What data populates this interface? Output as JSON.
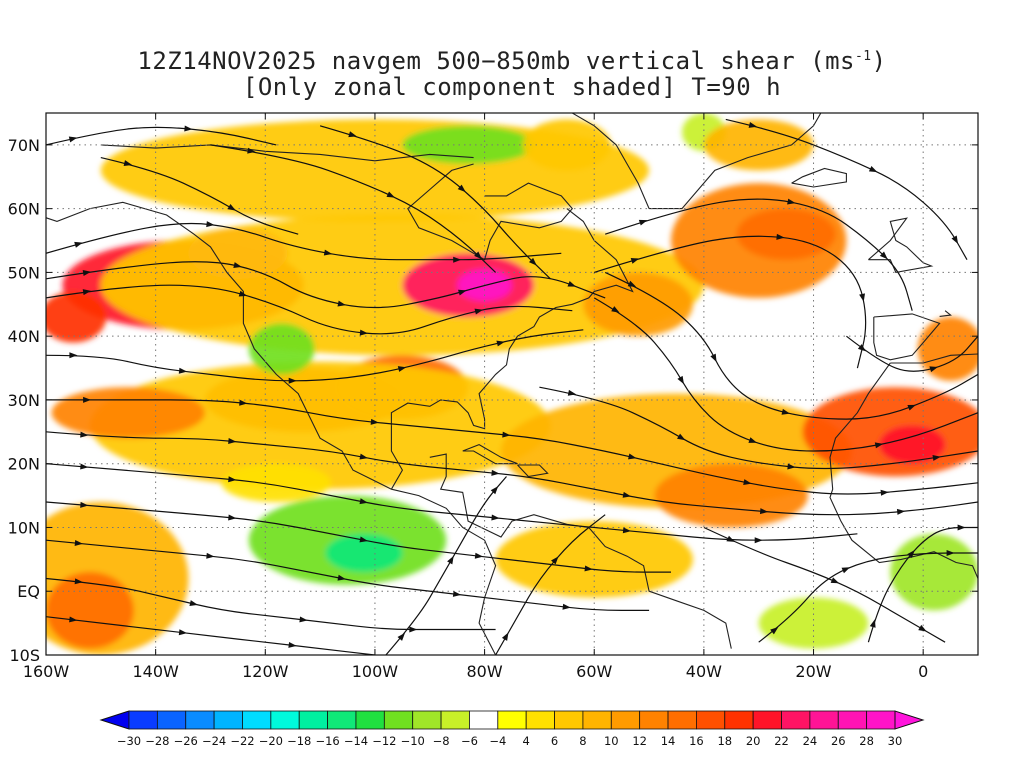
{
  "title": {
    "line1_prefix": "12Z14NOV2025 navgem 500−850mb vertical shear (ms",
    "line1_sup": "-1",
    "line1_suffix": ")",
    "line2": "[Only zonal component shaded] T=90 h"
  },
  "map": {
    "lon_range": [
      -160,
      10
    ],
    "lat_range": [
      -10,
      75
    ],
    "lon_ticks": [
      {
        "value": -160,
        "label": "160W"
      },
      {
        "value": -140,
        "label": "140W"
      },
      {
        "value": -120,
        "label": "120W"
      },
      {
        "value": -100,
        "label": "100W"
      },
      {
        "value": -80,
        "label": "80W"
      },
      {
        "value": -60,
        "label": "60W"
      },
      {
        "value": -40,
        "label": "40W"
      },
      {
        "value": -20,
        "label": "20W"
      },
      {
        "value": 0,
        "label": "0"
      }
    ],
    "lat_ticks": [
      {
        "value": 70,
        "label": "70N"
      },
      {
        "value": 60,
        "label": "60N"
      },
      {
        "value": 50,
        "label": "50N"
      },
      {
        "value": 40,
        "label": "40N"
      },
      {
        "value": 30,
        "label": "30N"
      },
      {
        "value": 20,
        "label": "20N"
      },
      {
        "value": 10,
        "label": "10N"
      },
      {
        "value": 0,
        "label": "EQ"
      },
      {
        "value": -10,
        "label": "10S"
      }
    ],
    "grid": "dotted"
  },
  "colorbar": {
    "labels": [
      "-30",
      "-28",
      "-26",
      "-24",
      "-22",
      "-20",
      "-18",
      "-16",
      "-14",
      "-12",
      "-10",
      "-8",
      "-6",
      "-4",
      "4",
      "6",
      "8",
      "10",
      "12",
      "14",
      "16",
      "18",
      "20",
      "22",
      "24",
      "26",
      "28",
      "30"
    ],
    "colors": [
      "#0000f0",
      "#0a3cff",
      "#0a64ff",
      "#0a8cff",
      "#00b4ff",
      "#00dcff",
      "#00fadc",
      "#00f0a0",
      "#10e878",
      "#20e040",
      "#70e020",
      "#a0e628",
      "#c8f028",
      "#ffffff",
      "#ffff00",
      "#ffe100",
      "#ffc800",
      "#ffb400",
      "#ff9b00",
      "#ff8200",
      "#ff6e00",
      "#ff5000",
      "#ff3200",
      "#ff1428",
      "#ff1464",
      "#ff1496",
      "#ff14b4",
      "#ff14c8",
      "#ff14dc"
    ]
  },
  "shear_blobs": [
    {
      "lon": -135,
      "lat": 48,
      "rlon": 22,
      "rlat": 7,
      "value": 22
    },
    {
      "lon": -125,
      "lat": 53,
      "rlon": 9,
      "rlat": 4,
      "value": 30
    },
    {
      "lon": -155,
      "lat": 43,
      "rlon": 6,
      "rlat": 4,
      "value": 20
    },
    {
      "lon": -95,
      "lat": 48,
      "rlon": 55,
      "rlat": 11,
      "value": 9
    },
    {
      "lon": -83,
      "lat": 48,
      "rlon": 12,
      "rlat": 5,
      "value": 24
    },
    {
      "lon": -80,
      "lat": 48,
      "rlon": 5,
      "rlat": 2.5,
      "value": 30
    },
    {
      "lon": -100,
      "lat": 66,
      "rlon": 50,
      "rlat": 8,
      "value": 8
    },
    {
      "lon": -83,
      "lat": 70,
      "rlon": 12,
      "rlat": 3,
      "value": -10
    },
    {
      "lon": -113,
      "lat": 30,
      "rlon": 18,
      "rlat": 5,
      "value": 18
    },
    {
      "lon": -95,
      "lat": 32,
      "rlon": 12,
      "rlat": 5,
      "value": 16
    },
    {
      "lon": -110,
      "lat": 26,
      "rlon": 42,
      "rlat": 10,
      "value": 9
    },
    {
      "lon": -145,
      "lat": 28,
      "rlon": 14,
      "rlat": 4,
      "value": 14
    },
    {
      "lon": -117,
      "lat": 38,
      "rlon": 6,
      "rlat": 4,
      "value": -10
    },
    {
      "lon": -52,
      "lat": 45,
      "rlon": 10,
      "rlat": 5,
      "value": 12
    },
    {
      "lon": -30,
      "lat": 55,
      "rlon": 16,
      "rlat": 9,
      "value": 14
    },
    {
      "lon": -25,
      "lat": 56,
      "rlon": 9,
      "rlat": 4,
      "value": 17
    },
    {
      "lon": -45,
      "lat": 22,
      "rlon": 32,
      "rlat": 9,
      "value": 10
    },
    {
      "lon": -35,
      "lat": 15,
      "rlon": 14,
      "rlat": 5,
      "value": 14
    },
    {
      "lon": -5,
      "lat": 25,
      "rlon": 17,
      "rlat": 7,
      "value": 18
    },
    {
      "lon": -2,
      "lat": 23,
      "rlon": 6,
      "rlat": 3,
      "value": 22
    },
    {
      "lon": 5,
      "lat": 38,
      "rlon": 6,
      "rlat": 5,
      "value": 14
    },
    {
      "lon": -60,
      "lat": 5,
      "rlon": 18,
      "rlat": 6,
      "value": 9
    },
    {
      "lon": -150,
      "lat": 2,
      "rlon": 16,
      "rlat": 12,
      "value": 10
    },
    {
      "lon": -152,
      "lat": -3,
      "rlon": 8,
      "rlat": 6,
      "value": 16
    },
    {
      "lon": -105,
      "lat": 8,
      "rlon": 18,
      "rlat": 7,
      "value": -10
    },
    {
      "lon": -102,
      "lat": 6,
      "rlon": 7,
      "rlat": 3,
      "value": -14
    },
    {
      "lon": -118,
      "lat": 17,
      "rlon": 10,
      "rlat": 3,
      "value": 6
    },
    {
      "lon": 2,
      "lat": 3,
      "rlon": 8,
      "rlat": 6,
      "value": -8
    },
    {
      "lon": -20,
      "lat": -5,
      "rlon": 10,
      "rlat": 4,
      "value": -6
    },
    {
      "lon": -40,
      "lat": 72,
      "rlon": 4,
      "rlat": 3,
      "value": -6
    },
    {
      "lon": -65,
      "lat": 70,
      "rlon": 8,
      "rlat": 4,
      "value": 8
    },
    {
      "lon": -30,
      "lat": 70,
      "rlon": 10,
      "rlat": 4,
      "value": 10
    }
  ],
  "streamlines": [
    [
      [
        -160,
        49
      ],
      [
        -145,
        51
      ],
      [
        -130,
        52
      ],
      [
        -120,
        50
      ],
      [
        -112,
        46
      ],
      [
        -100,
        44
      ],
      [
        -88,
        46
      ],
      [
        -80,
        48
      ],
      [
        -70,
        50
      ],
      [
        -58,
        46
      ]
    ],
    [
      [
        -160,
        46
      ],
      [
        -145,
        48
      ],
      [
        -130,
        48
      ],
      [
        -118,
        45
      ],
      [
        -108,
        41
      ],
      [
        -96,
        40
      ],
      [
        -86,
        43
      ],
      [
        -76,
        45
      ],
      [
        -64,
        44
      ]
    ],
    [
      [
        -160,
        53
      ],
      [
        -148,
        56
      ],
      [
        -135,
        58
      ],
      [
        -125,
        57
      ],
      [
        -115,
        54
      ],
      [
        -102,
        52
      ],
      [
        -90,
        52
      ],
      [
        -80,
        52
      ],
      [
        -66,
        53
      ]
    ],
    [
      [
        -130,
        70
      ],
      [
        -115,
        68
      ],
      [
        -102,
        64
      ],
      [
        -92,
        60
      ],
      [
        -84,
        55
      ],
      [
        -78,
        50
      ]
    ],
    [
      [
        -110,
        73
      ],
      [
        -98,
        70
      ],
      [
        -88,
        66
      ],
      [
        -80,
        60
      ],
      [
        -74,
        54
      ],
      [
        -68,
        49
      ]
    ],
    [
      [
        -60,
        46
      ],
      [
        -52,
        42
      ],
      [
        -46,
        36
      ],
      [
        -42,
        30
      ],
      [
        -36,
        25
      ],
      [
        -26,
        22
      ],
      [
        -14,
        22
      ],
      [
        -2,
        24
      ],
      [
        10,
        28
      ]
    ],
    [
      [
        -58,
        50
      ],
      [
        -48,
        46
      ],
      [
        -40,
        40
      ],
      [
        -36,
        33
      ],
      [
        -30,
        29
      ],
      [
        -20,
        27
      ],
      [
        -8,
        27
      ],
      [
        4,
        31
      ],
      [
        10,
        34
      ]
    ],
    [
      [
        -70,
        32
      ],
      [
        -58,
        30
      ],
      [
        -48,
        26
      ],
      [
        -40,
        22
      ],
      [
        -30,
        20
      ],
      [
        -18,
        19
      ],
      [
        -5,
        20
      ],
      [
        10,
        22
      ]
    ],
    [
      [
        -60,
        50
      ],
      [
        -45,
        54
      ],
      [
        -32,
        56
      ],
      [
        -20,
        55
      ],
      [
        -12,
        50
      ],
      [
        -10,
        42
      ],
      [
        -12,
        35
      ]
    ],
    [
      [
        -58,
        56
      ],
      [
        -44,
        60
      ],
      [
        -30,
        62
      ],
      [
        -18,
        60
      ],
      [
        -10,
        55
      ],
      [
        -4,
        50
      ],
      [
        -2,
        44
      ]
    ],
    [
      [
        -160,
        30
      ],
      [
        -145,
        30
      ],
      [
        -130,
        30
      ],
      [
        -118,
        29
      ],
      [
        -106,
        27
      ],
      [
        -94,
        26
      ],
      [
        -82,
        25
      ],
      [
        -70,
        24
      ],
      [
        -58,
        22
      ],
      [
        -48,
        20
      ],
      [
        -38,
        18
      ],
      [
        -26,
        16
      ],
      [
        -14,
        15
      ],
      [
        0,
        16
      ],
      [
        10,
        17
      ]
    ],
    [
      [
        -160,
        25
      ],
      [
        -146,
        24
      ],
      [
        -132,
        24
      ],
      [
        -120,
        23
      ],
      [
        -108,
        22
      ],
      [
        -96,
        20
      ],
      [
        -84,
        19
      ],
      [
        -72,
        18
      ],
      [
        -60,
        16
      ],
      [
        -48,
        14
      ],
      [
        -36,
        13
      ],
      [
        -22,
        12
      ],
      [
        -10,
        12
      ],
      [
        2,
        13
      ],
      [
        10,
        14
      ]
    ],
    [
      [
        -160,
        20
      ],
      [
        -146,
        19
      ],
      [
        -132,
        18
      ],
      [
        -120,
        17
      ],
      [
        -108,
        15
      ],
      [
        -96,
        13
      ],
      [
        -84,
        12
      ],
      [
        -72,
        11
      ],
      [
        -60,
        10
      ],
      [
        -48,
        9
      ],
      [
        -36,
        8
      ],
      [
        -24,
        8
      ],
      [
        -12,
        9
      ]
    ],
    [
      [
        -160,
        14
      ],
      [
        -146,
        13
      ],
      [
        -132,
        12
      ],
      [
        -120,
        11
      ],
      [
        -108,
        9
      ],
      [
        -96,
        7
      ],
      [
        -86,
        6
      ],
      [
        -76,
        5
      ],
      [
        -66,
        4
      ],
      [
        -56,
        3
      ],
      [
        -46,
        3
      ]
    ],
    [
      [
        -160,
        8
      ],
      [
        -148,
        7
      ],
      [
        -136,
        6
      ],
      [
        -124,
        5
      ],
      [
        -112,
        3
      ],
      [
        -100,
        1
      ],
      [
        -90,
        0
      ],
      [
        -80,
        -1
      ],
      [
        -70,
        -2
      ],
      [
        -60,
        -3
      ],
      [
        -50,
        -3
      ]
    ],
    [
      [
        -160,
        2
      ],
      [
        -148,
        1
      ],
      [
        -138,
        -1
      ],
      [
        -128,
        -3
      ],
      [
        -118,
        -4
      ],
      [
        -108,
        -5
      ],
      [
        -98,
        -6
      ],
      [
        -88,
        -6
      ],
      [
        -78,
        -6
      ]
    ],
    [
      [
        -160,
        -4
      ],
      [
        -150,
        -5
      ],
      [
        -140,
        -6
      ],
      [
        -130,
        -7
      ],
      [
        -120,
        -8
      ],
      [
        -110,
        -9
      ],
      [
        -100,
        -10
      ]
    ],
    [
      [
        -160,
        37
      ],
      [
        -150,
        37
      ],
      [
        -140,
        35
      ],
      [
        -130,
        34
      ],
      [
        -120,
        33
      ],
      [
        -110,
        33
      ],
      [
        -100,
        34
      ],
      [
        -90,
        36
      ],
      [
        -82,
        38
      ],
      [
        -72,
        40
      ],
      [
        -62,
        41
      ]
    ],
    [
      [
        -10,
        -8
      ],
      [
        -8,
        -2
      ],
      [
        -4,
        4
      ],
      [
        0,
        8
      ],
      [
        4,
        10
      ],
      [
        10,
        10
      ]
    ],
    [
      [
        -30,
        -8
      ],
      [
        -24,
        -4
      ],
      [
        -18,
        2
      ],
      [
        -10,
        5
      ],
      [
        0,
        6
      ],
      [
        10,
        6
      ]
    ],
    [
      [
        -40,
        10
      ],
      [
        -30,
        6
      ],
      [
        -20,
        3
      ],
      [
        -12,
        0
      ],
      [
        -4,
        -4
      ],
      [
        4,
        -8
      ]
    ],
    [
      [
        -98,
        -10
      ],
      [
        -92,
        -4
      ],
      [
        -88,
        2
      ],
      [
        -84,
        8
      ],
      [
        -80,
        14
      ],
      [
        -76,
        18
      ]
    ],
    [
      [
        -78,
        -10
      ],
      [
        -74,
        -4
      ],
      [
        -70,
        2
      ],
      [
        -64,
        8
      ],
      [
        -58,
        12
      ]
    ],
    [
      [
        -150,
        68
      ],
      [
        -140,
        66
      ],
      [
        -130,
        62
      ],
      [
        -122,
        58
      ],
      [
        -114,
        56
      ]
    ],
    [
      [
        -160,
        70
      ],
      [
        -150,
        72
      ],
      [
        -140,
        73
      ],
      [
        -128,
        72
      ],
      [
        -118,
        70
      ]
    ],
    [
      [
        -36,
        74
      ],
      [
        -26,
        72
      ],
      [
        -14,
        68
      ],
      [
        -4,
        64
      ],
      [
        4,
        58
      ],
      [
        8,
        52
      ]
    ],
    [
      [
        -14,
        40
      ],
      [
        -8,
        36
      ],
      [
        -2,
        34
      ],
      [
        6,
        36
      ],
      [
        10,
        40
      ]
    ]
  ]
}
